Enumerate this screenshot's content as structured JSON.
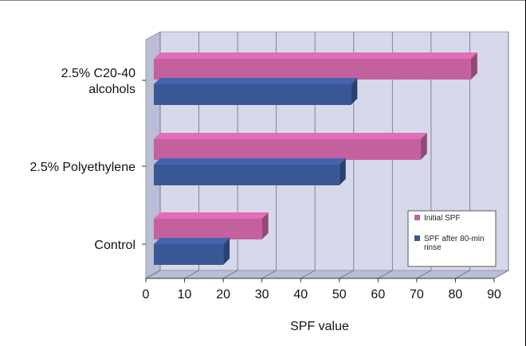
{
  "chart_data": {
    "type": "bar",
    "orientation": "horizontal",
    "style": "3d",
    "categories": [
      "2.5% C20-40 alcohols",
      "2.5% Polyethylene",
      "Control"
    ],
    "category_lines": [
      [
        "2.5% C20-40",
        "alcohols"
      ],
      [
        "2.5% Polyethylene"
      ],
      [
        "Control"
      ]
    ],
    "series": [
      {
        "name": "Initial SPF",
        "values": [
          84,
          71,
          30
        ],
        "color": "#c4609e"
      },
      {
        "name": "SPF after 80-min rinse",
        "values": [
          53,
          50,
          20
        ],
        "color": "#3a5795"
      }
    ],
    "legend_lines": [
      [
        "Initial SPF"
      ],
      [
        "SPF after 80-min",
        "rinse"
      ]
    ],
    "xlabel": "SPF value",
    "xlim": [
      0,
      90
    ],
    "xticks": [
      0,
      10,
      20,
      30,
      40,
      50,
      60,
      70,
      80,
      90
    ],
    "grid": true,
    "legend_position": "bottom-right",
    "colors": {
      "plot_wall": "#d6d9ea",
      "plot_floor": "#b9bdd6",
      "grid": "#6b6f80"
    }
  }
}
